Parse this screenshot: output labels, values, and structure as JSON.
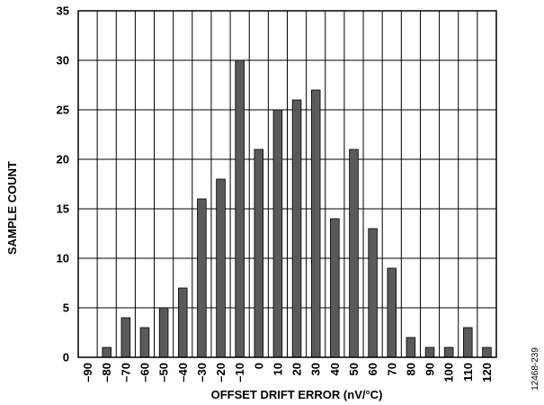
{
  "chart_data": {
    "type": "bar",
    "xlabel": "OFFSET DRIFT ERROR (nV/°C)",
    "ylabel": "SAMPLE COUNT",
    "categories": [
      "–90",
      "–80",
      "–70",
      "–60",
      "–50",
      "–40",
      "–30",
      "–20",
      "–10",
      "0",
      "10",
      "20",
      "30",
      "40",
      "50",
      "60",
      "70",
      "80",
      "90",
      "100",
      "110",
      "120"
    ],
    "values": [
      0,
      1,
      4,
      3,
      5,
      7,
      16,
      18,
      30,
      21,
      25,
      26,
      27,
      14,
      21,
      13,
      9,
      2,
      1,
      1,
      3,
      1
    ],
    "ylim": [
      0,
      35
    ],
    "yticks": [
      0,
      5,
      10,
      15,
      20,
      25,
      30,
      35
    ],
    "grid": true,
    "legend": "none",
    "bar_color": "#5a5a5a",
    "figure_id": "12468-239"
  }
}
